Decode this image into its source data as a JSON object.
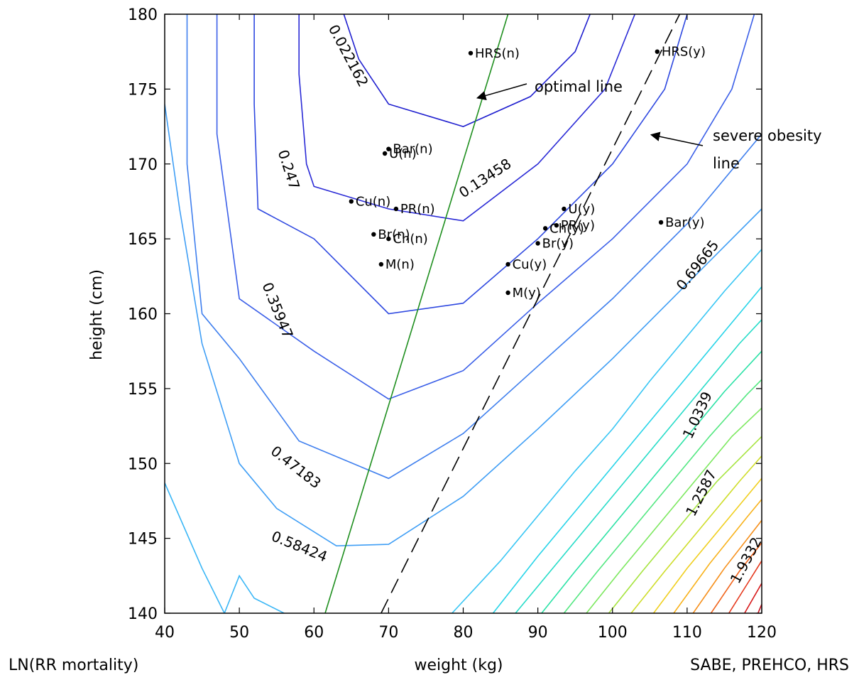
{
  "chart_data": {
    "type": "contour",
    "title": "",
    "xlabel": "weight (kg)",
    "ylabel": "height (cm)",
    "xlim": [
      40,
      120
    ],
    "ylim": [
      140,
      180
    ],
    "xticks": [
      40,
      50,
      60,
      70,
      80,
      90,
      100,
      110,
      120
    ],
    "yticks": [
      140,
      145,
      150,
      155,
      160,
      165,
      170,
      175,
      180
    ],
    "grid": false,
    "box": true,
    "contour_levels": [
      {
        "label": "0.022162",
        "color": "#1f1fcf",
        "points": [
          [
            64,
            180
          ],
          [
            66,
            177
          ],
          [
            70,
            174
          ],
          [
            80,
            172.5
          ],
          [
            89,
            174.5
          ],
          [
            95,
            177.5
          ],
          [
            97,
            180
          ]
        ]
      },
      {
        "label": "0.13458",
        "color": "#2a2ad6",
        "points": [
          [
            58,
            180
          ],
          [
            58,
            176
          ],
          [
            59,
            170
          ],
          [
            60,
            168.5
          ],
          [
            70,
            167
          ],
          [
            80,
            166.2
          ],
          [
            90,
            170
          ],
          [
            99,
            175
          ],
          [
            103,
            180
          ]
        ]
      },
      {
        "label": "0.247",
        "color": "#2e48e0",
        "points": [
          [
            52,
            180
          ],
          [
            52,
            174
          ],
          [
            52.5,
            167
          ],
          [
            60,
            165
          ],
          [
            70,
            160
          ],
          [
            80,
            160.7
          ],
          [
            90,
            165
          ],
          [
            100,
            170
          ],
          [
            107,
            175
          ],
          [
            110,
            180
          ]
        ]
      },
      {
        "label": "0.35947",
        "color": "#3b5fe8",
        "points": [
          [
            47,
            180
          ],
          [
            47,
            172
          ],
          [
            50,
            161
          ],
          [
            60,
            157.5
          ],
          [
            70,
            154.3
          ],
          [
            80,
            156.2
          ],
          [
            90,
            160.7
          ],
          [
            100,
            165
          ],
          [
            110,
            170
          ],
          [
            116,
            175
          ],
          [
            119,
            180
          ]
        ]
      },
      {
        "label": "0.47183",
        "color": "#3f7fee",
        "points": [
          [
            43,
            180
          ],
          [
            43,
            170
          ],
          [
            45,
            160
          ],
          [
            50,
            157
          ],
          [
            58,
            151.5
          ],
          [
            70,
            149
          ],
          [
            80,
            152
          ],
          [
            90,
            156.5
          ],
          [
            100,
            161
          ],
          [
            110,
            166
          ],
          [
            120,
            172
          ]
        ]
      },
      {
        "label": "0.58424",
        "color": "#3f9ef5",
        "points": [
          [
            40,
            174
          ],
          [
            42,
            167
          ],
          [
            45,
            158
          ],
          [
            50,
            150
          ],
          [
            55,
            147
          ],
          [
            63,
            144.5
          ],
          [
            70,
            144.6
          ],
          [
            80,
            147.8
          ],
          [
            90,
            152.3
          ],
          [
            100,
            157
          ],
          [
            110,
            162
          ],
          [
            120,
            167
          ]
        ]
      },
      {
        "label": "",
        "color": "#39b6f6",
        "points": [
          [
            40,
            148.7
          ],
          [
            45,
            143
          ],
          [
            48,
            140
          ],
          [
            50,
            142.5
          ],
          [
            52,
            141
          ],
          [
            56,
            140
          ]
        ]
      },
      {
        "label": "0.69665",
        "color": "#38c6f4",
        "points": [
          [
            78.5,
            140
          ],
          [
            85,
            143.5
          ],
          [
            90,
            146.5
          ],
          [
            95,
            149.5
          ],
          [
            100,
            152.3
          ],
          [
            105,
            155.5
          ],
          [
            110,
            158.5
          ],
          [
            115,
            161.5
          ],
          [
            120,
            164.3
          ]
        ]
      },
      {
        "label": "",
        "color": "#27d4e8",
        "points": [
          [
            84,
            140
          ],
          [
            90,
            143.8
          ],
          [
            95,
            146.8
          ],
          [
            100,
            149.8
          ],
          [
            105,
            152.8
          ],
          [
            110,
            155.8
          ],
          [
            115,
            158.8
          ],
          [
            120,
            161.8
          ]
        ]
      },
      {
        "label": "",
        "color": "#26dcc8",
        "points": [
          [
            87,
            140
          ],
          [
            92,
            143
          ],
          [
            97,
            146
          ],
          [
            102,
            149
          ],
          [
            107,
            152
          ],
          [
            112,
            155
          ],
          [
            117,
            158
          ],
          [
            120,
            159.6
          ]
        ]
      },
      {
        "label": "1.0339",
        "color": "#2be2a6",
        "points": [
          [
            90.5,
            140
          ],
          [
            95,
            142.8
          ],
          [
            100,
            145.8
          ],
          [
            105,
            148.8
          ],
          [
            110,
            151.8
          ],
          [
            115,
            154.8
          ],
          [
            120,
            157.5
          ]
        ]
      },
      {
        "label": "",
        "color": "#53e781",
        "points": [
          [
            93.5,
            140
          ],
          [
            98,
            142.8
          ],
          [
            103,
            145.8
          ],
          [
            108,
            148.8
          ],
          [
            113,
            151.8
          ],
          [
            118,
            154.6
          ],
          [
            120,
            155.6
          ]
        ]
      },
      {
        "label": "",
        "color": "#7ce85f",
        "points": [
          [
            96.5,
            140
          ],
          [
            101,
            142.8
          ],
          [
            106,
            145.8
          ],
          [
            111,
            148.8
          ],
          [
            116,
            151.8
          ],
          [
            120,
            153.7
          ]
        ]
      },
      {
        "label": "1.2587",
        "color": "#a6e43f",
        "points": [
          [
            99.5,
            140
          ],
          [
            104,
            142.8
          ],
          [
            109,
            145.8
          ],
          [
            114,
            148.8
          ],
          [
            120,
            151.8
          ]
        ]
      },
      {
        "label": "",
        "color": "#cfdd2a",
        "points": [
          [
            102.5,
            140
          ],
          [
            107,
            142.8
          ],
          [
            112,
            145.8
          ],
          [
            117,
            148.8
          ],
          [
            120,
            150.5
          ]
        ]
      },
      {
        "label": "",
        "color": "#f0cf1f",
        "points": [
          [
            105.5,
            140
          ],
          [
            110,
            143
          ],
          [
            115,
            146
          ],
          [
            120,
            149
          ]
        ]
      },
      {
        "label": "",
        "color": "#f8b21b",
        "points": [
          [
            108.2,
            140
          ],
          [
            113,
            143.3
          ],
          [
            118,
            146.4
          ],
          [
            120,
            147.6
          ]
        ]
      },
      {
        "label": "",
        "color": "#f6901c",
        "points": [
          [
            110.8,
            140
          ],
          [
            115,
            143
          ],
          [
            120,
            146.2
          ]
        ]
      },
      {
        "label": "",
        "color": "#f0651d",
        "points": [
          [
            113.2,
            140
          ],
          [
            117,
            142.8
          ],
          [
            120,
            144.7
          ]
        ]
      },
      {
        "label": "1.9332",
        "color": "#e5381c",
        "points": [
          [
            115.6,
            140
          ],
          [
            118.5,
            142.3
          ],
          [
            120,
            143.5
          ]
        ]
      },
      {
        "label": "",
        "color": "#d7181a",
        "points": [
          [
            117.7,
            140
          ],
          [
            120,
            142
          ]
        ]
      },
      {
        "label": "",
        "color": "#c50f1d",
        "points": [
          [
            119.5,
            140
          ],
          [
            120,
            140.6
          ]
        ]
      }
    ],
    "lines": [
      {
        "name": "optimal line",
        "style": "solid",
        "color": "#1f8f1f",
        "points": [
          [
            61.5,
            140
          ],
          [
            86,
            180
          ]
        ]
      },
      {
        "name": "severe obesity line",
        "style": "dashed",
        "color": "#000000",
        "points": [
          [
            69,
            140
          ],
          [
            109,
            180
          ]
        ]
      }
    ],
    "points": [
      {
        "label": "HRS(n)",
        "x": 81,
        "y": 177.4
      },
      {
        "label": "HRS(y)",
        "x": 106,
        "y": 177.5
      },
      {
        "label": "Bar(n)",
        "x": 70,
        "y": 171
      },
      {
        "label": "U(n)",
        "x": 69.5,
        "y": 170.7
      },
      {
        "label": "Cu(n)",
        "x": 65,
        "y": 167.5
      },
      {
        "label": "PR(n)",
        "x": 71,
        "y": 167
      },
      {
        "label": "Br(n)",
        "x": 68,
        "y": 165.3
      },
      {
        "label": "Ch(n)",
        "x": 70,
        "y": 165
      },
      {
        "label": "M(n)",
        "x": 69,
        "y": 163.3
      },
      {
        "label": "U(y)",
        "x": 93.5,
        "y": 167
      },
      {
        "label": "PR(y)",
        "x": 92.5,
        "y": 165.9
      },
      {
        "label": "Ch(y)",
        "x": 91,
        "y": 165.7
      },
      {
        "label": "Br(y)",
        "x": 90,
        "y": 164.7
      },
      {
        "label": "Cu(y)",
        "x": 86,
        "y": 163.3
      },
      {
        "label": "M(y)",
        "x": 86,
        "y": 161.4
      },
      {
        "label": "Bar(y)",
        "x": 106.5,
        "y": 166.1
      }
    ],
    "annotations": [
      {
        "text": "optimal line",
        "arrow_to": [
          81.5,
          174.5
        ]
      },
      {
        "text": "severe obesity",
        "text2": "line",
        "arrow_to": [
          104.8,
          172
        ]
      }
    ]
  },
  "footer": {
    "left": "LN(RR mortality)",
    "right": "SABE, PREHCO, HRS"
  }
}
